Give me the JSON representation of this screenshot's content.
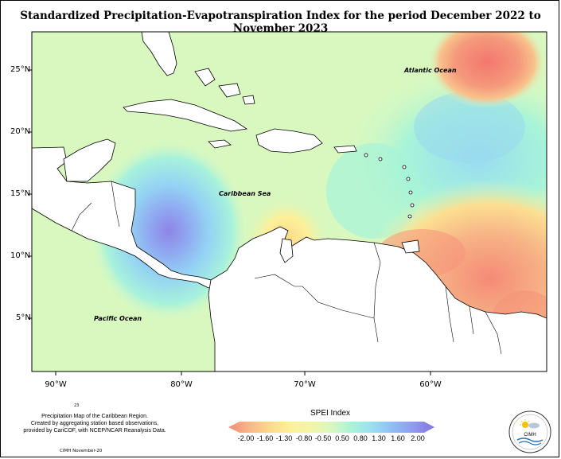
{
  "title": "Standardized Precipitation-Evapotranspiration Index for the period December 2022 to November 2023",
  "map": {
    "latitude_labels": [
      "25°N",
      "20°N",
      "15°N",
      "10°N",
      "5°N"
    ],
    "longitude_labels": [
      "90°W",
      "80°W",
      "70°W",
      "60°W"
    ],
    "labels": {
      "atlantic": "Atlantic Ocean",
      "caribbean": "Caribbean Sea",
      "pacific": "Pacific Ocean"
    }
  },
  "legend": {
    "title": "SPEI Index",
    "ticks": [
      "-2.00",
      "-1.60",
      "-1.30",
      "-0.80",
      "-0.50",
      "0.50",
      "0.80",
      "1.30",
      "1.60",
      "2.00"
    ],
    "colors": [
      "#f58a77",
      "#f7b686",
      "#fbd98b",
      "#fdf099",
      "#f3f6a6",
      "#d8f8c0",
      "#a7f4d8",
      "#99def2",
      "#8fbcf5",
      "#8f9aee",
      "#8574e0"
    ]
  },
  "page_number": "23",
  "caption": {
    "line1": "Precipitation Map of the Caribbean Region.",
    "line2": "Created by aggregating station based observations,",
    "line3": "provided by CariCOF, with NCEP/NCAR Reanalysis Data."
  },
  "footer_date": "CIMH November-20",
  "logo_text": "CIMH"
}
